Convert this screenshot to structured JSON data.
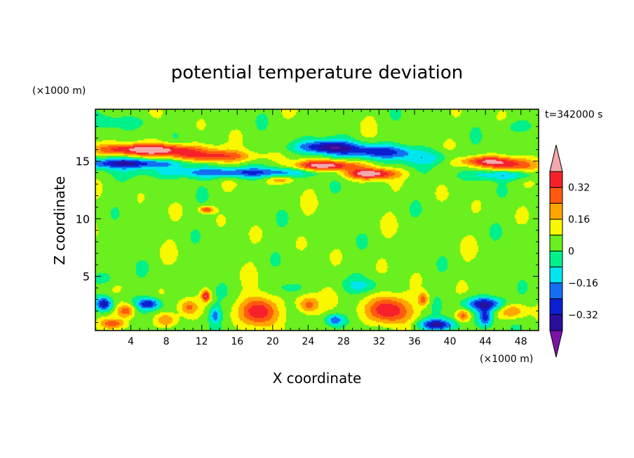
{
  "chart_data": {
    "type": "heatmap",
    "title": "potential temperature deviation",
    "xlabel": "X coordinate",
    "ylabel": "Z coordinate",
    "x_unit": "(×1000 m)",
    "y_unit": "(×1000 m)",
    "time_label": "t=342000 s",
    "xlim": [
      0,
      50
    ],
    "ylim": [
      0.3,
      19.5
    ],
    "x_ticks": [
      4,
      8,
      12,
      16,
      20,
      24,
      28,
      32,
      36,
      40,
      44,
      48
    ],
    "y_ticks": [
      5,
      10,
      15
    ],
    "colorbar": {
      "levels": [
        -0.4,
        -0.32,
        -0.24,
        -0.16,
        -0.08,
        0,
        0.08,
        0.16,
        0.24,
        0.32,
        0.4
      ],
      "tick_labels": [
        "0.32",
        "0.16",
        "0",
        "−0.16",
        "−0.32"
      ],
      "tick_values": [
        0.32,
        0.16,
        0,
        -0.16,
        -0.32
      ],
      "colors": [
        "#7b12a8",
        "#2a0f9c",
        "#0b1fd1",
        "#156ef2",
        "#00e6ef",
        "#00f08a",
        "#69f01e",
        "#f8f800",
        "#ffa600",
        "#ff5a10",
        "#f5202a",
        "#f5a8aa"
      ],
      "extend": "both"
    },
    "anomalies": [
      {
        "x": 6,
        "z": 16.0,
        "v": 0.42,
        "sx": 6,
        "sz": 0.5
      },
      {
        "x": 13,
        "z": 15.4,
        "v": 0.3,
        "sx": 5,
        "sz": 0.5
      },
      {
        "x": 4,
        "z": 14.8,
        "v": -0.38,
        "sx": 6,
        "sz": 0.45
      },
      {
        "x": 16,
        "z": 14.0,
        "v": -0.3,
        "sx": 9,
        "sz": 0.45
      },
      {
        "x": 26,
        "z": 16.2,
        "v": -0.4,
        "sx": 3.5,
        "sz": 0.6
      },
      {
        "x": 32,
        "z": 15.8,
        "v": -0.32,
        "sx": 4,
        "sz": 0.6
      },
      {
        "x": 26,
        "z": 14.6,
        "v": 0.42,
        "sx": 3.5,
        "sz": 0.45
      },
      {
        "x": 31,
        "z": 13.9,
        "v": 0.42,
        "sx": 3,
        "sz": 0.45
      },
      {
        "x": 44,
        "z": 15.0,
        "v": 0.32,
        "sx": 3.5,
        "sz": 0.45
      },
      {
        "x": 47,
        "z": 14.6,
        "v": 0.22,
        "sx": 3,
        "sz": 0.5
      },
      {
        "x": 38,
        "z": 15.2,
        "v": -0.15,
        "sx": 4,
        "sz": 0.6
      },
      {
        "x": 46,
        "z": 13.8,
        "v": -0.2,
        "sx": 4,
        "sz": 0.4
      },
      {
        "x": 21,
        "z": 13.4,
        "v": 0.2,
        "sx": 1.5,
        "sz": 0.35
      },
      {
        "x": 12.5,
        "z": 10.8,
        "v": 0.3,
        "sx": 0.8,
        "sz": 0.3
      },
      {
        "x": 3,
        "z": 18.4,
        "v": -0.1,
        "sx": 3,
        "sz": 0.5
      },
      {
        "x": 48,
        "z": 18.0,
        "v": -0.1,
        "sx": 2,
        "sz": 0.6
      },
      {
        "x": 1,
        "z": 2.6,
        "v": -0.4,
        "sx": 0.9,
        "sz": 0.6
      },
      {
        "x": 6,
        "z": 2.6,
        "v": -0.36,
        "sx": 1.3,
        "sz": 0.5
      },
      {
        "x": 3.5,
        "z": 2.0,
        "v": 0.28,
        "sx": 1.0,
        "sz": 0.6
      },
      {
        "x": 2,
        "z": 0.9,
        "v": 0.2,
        "sx": 1.5,
        "sz": 0.4
      },
      {
        "x": 8,
        "z": 1.2,
        "v": 0.22,
        "sx": 1.2,
        "sz": 0.6
      },
      {
        "x": 12.5,
        "z": 3.3,
        "v": 0.36,
        "sx": 0.5,
        "sz": 0.5
      },
      {
        "x": 13.5,
        "z": 1.6,
        "v": -0.24,
        "sx": 0.6,
        "sz": 0.7
      },
      {
        "x": 18.5,
        "z": 2.0,
        "v": 0.36,
        "sx": 2.0,
        "sz": 1.2
      },
      {
        "x": 24,
        "z": 2.5,
        "v": 0.25,
        "sx": 1.2,
        "sz": 0.8
      },
      {
        "x": 27,
        "z": 1.2,
        "v": -0.28,
        "sx": 1.0,
        "sz": 0.5
      },
      {
        "x": 33,
        "z": 2.1,
        "v": 0.36,
        "sx": 2.3,
        "sz": 1.2
      },
      {
        "x": 37,
        "z": 3.0,
        "v": 0.25,
        "sx": 0.6,
        "sz": 0.6
      },
      {
        "x": 38.5,
        "z": 0.8,
        "v": -0.4,
        "sx": 2.0,
        "sz": 0.5
      },
      {
        "x": 44,
        "z": 2.6,
        "v": -0.4,
        "sx": 2.2,
        "sz": 0.6
      },
      {
        "x": 44,
        "z": 1.4,
        "v": -0.32,
        "sx": 0.8,
        "sz": 0.8
      },
      {
        "x": 41.5,
        "z": 1.6,
        "v": 0.24,
        "sx": 0.8,
        "sz": 0.6
      },
      {
        "x": 47,
        "z": 2.0,
        "v": 0.22,
        "sx": 1.5,
        "sz": 0.7
      },
      {
        "x": 10.5,
        "z": 2.3,
        "v": 0.18,
        "sx": 1.0,
        "sz": 0.6
      },
      {
        "x": 30,
        "z": 4.2,
        "v": -0.12,
        "sx": 2.0,
        "sz": 0.6
      },
      {
        "x": 22,
        "z": 4.0,
        "v": -0.1,
        "sx": 1.5,
        "sz": 0.5
      },
      {
        "x": 1,
        "z": 4.8,
        "v": -0.1,
        "sx": 1.5,
        "sz": 0.6
      }
    ]
  }
}
